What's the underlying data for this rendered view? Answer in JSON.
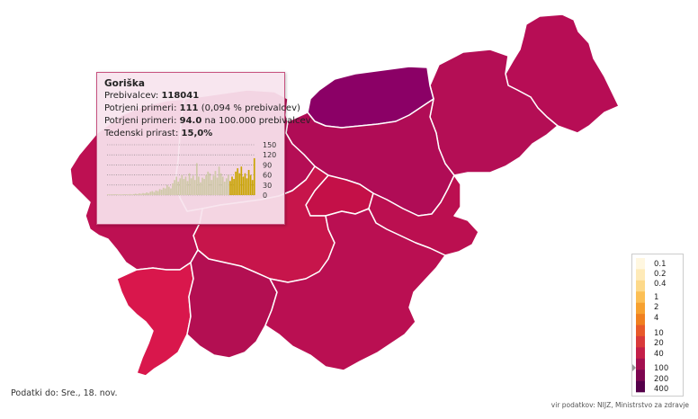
{
  "tooltip": {
    "region": "Goriška",
    "population_label": "Prebivalcev:",
    "population": "118041",
    "confirmed_label": "Potrjeni primeri:",
    "confirmed": "111",
    "confirmed_pct": "(0,094 % prebivalcev)",
    "per100k_label": "Potrjeni primeri:",
    "per100k": "94.0",
    "per100k_suffix": "na 100.000 prebivalcev",
    "growth_label": "Tedenski prirast:",
    "growth": "15,0%",
    "chart_ticks": [
      "150",
      "120",
      "90",
      "60",
      "30",
      "0"
    ],
    "chart_values": [
      1,
      1,
      1,
      0,
      1,
      1,
      2,
      1,
      1,
      2,
      1,
      2,
      3,
      2,
      3,
      4,
      3,
      5,
      4,
      6,
      5,
      8,
      6,
      10,
      12,
      9,
      14,
      12,
      18,
      16,
      22,
      20,
      30,
      25,
      20,
      35,
      45,
      55,
      40,
      50,
      60,
      48,
      55,
      42,
      65,
      50,
      58,
      45,
      95,
      55,
      38,
      52,
      48,
      60,
      70,
      65,
      45,
      58,
      72,
      52,
      85,
      65,
      55,
      40,
      50,
      60,
      42,
      55,
      48,
      70,
      80,
      65,
      85,
      55,
      65,
      50,
      75,
      60,
      45,
      110
    ],
    "chart_colors": {
      "early": "#cfc9a8",
      "late": "#c9a400"
    }
  },
  "legend": {
    "labels": [
      "0.1",
      "0.2",
      "0.4",
      "1",
      "2",
      "4",
      "10",
      "20",
      "40",
      "100",
      "200",
      "400"
    ],
    "colors": [
      "#fff7e0",
      "#feeab8",
      "#fdd98a",
      "#fcbf55",
      "#f7a12f",
      "#f0801f",
      "#e85a2a",
      "#d93a3a",
      "#c41f48",
      "#a3104f",
      "#7d0650",
      "#55004a"
    ]
  },
  "regions": [
    {
      "id": "region-pomurska",
      "color": "#b70d55"
    },
    {
      "id": "region-podravska",
      "color": "#b40e55"
    },
    {
      "id": "region-koroska",
      "color": "#8b0066"
    },
    {
      "id": "region-savinjska",
      "color": "#b00c56"
    },
    {
      "id": "region-zasavska",
      "color": "#c41048"
    },
    {
      "id": "region-posavska",
      "color": "#bb0f50"
    },
    {
      "id": "region-gorenjska",
      "color": "#b50e55"
    },
    {
      "id": "region-osrednjeslovenska",
      "color": "#c7154b"
    },
    {
      "id": "region-goriska",
      "color": "#bd1052"
    },
    {
      "id": "region-obalno-kraska",
      "color": "#d9174c"
    },
    {
      "id": "region-primorsko-notranjska",
      "color": "#b30f52"
    },
    {
      "id": "region-jugovzhodna",
      "color": "#ba0f52"
    }
  ],
  "footer": {
    "updated": "Podatki do: Sre., 18. nov.",
    "source": "vir podatkov: NIJZ, Ministrstvo za zdravje"
  }
}
